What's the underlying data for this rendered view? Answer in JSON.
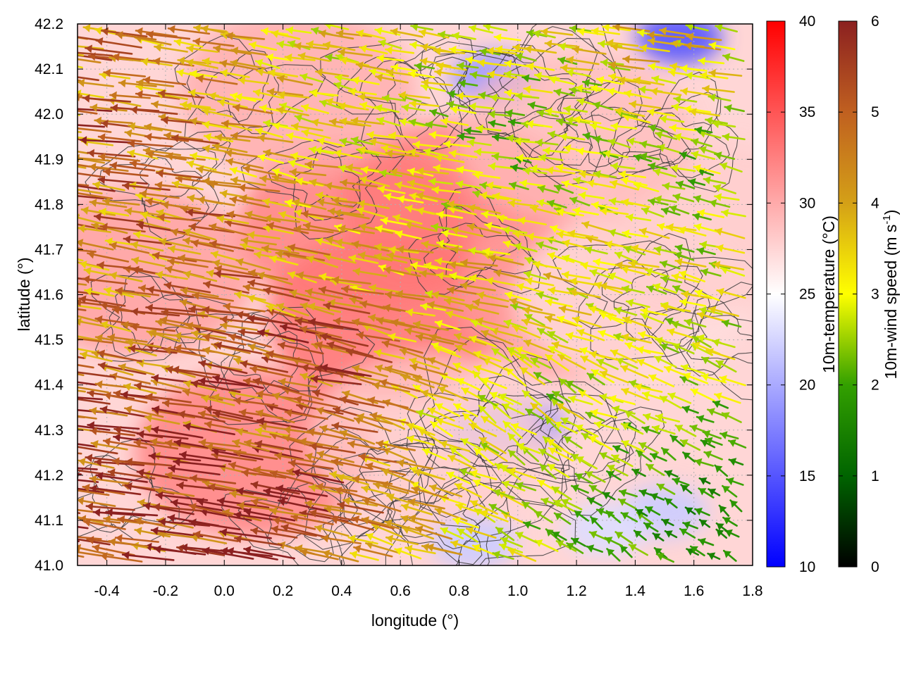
{
  "chart_data": {
    "type": "heatmap",
    "overlay": "vector-field-with-contours",
    "xlabel": "longitude (°)",
    "ylabel": "latitude (°)",
    "xlim": [
      -0.5,
      1.8
    ],
    "ylim": [
      41.0,
      42.2
    ],
    "xticks": [
      "-0.4",
      "-0.2",
      "0.0",
      "0.2",
      "0.4",
      "0.6",
      "0.8",
      "1.0",
      "1.2",
      "1.4",
      "1.6",
      "1.8"
    ],
    "xtick_values": [
      -0.4,
      -0.2,
      0.0,
      0.2,
      0.4,
      0.6,
      0.8,
      1.0,
      1.2,
      1.4,
      1.6,
      1.8
    ],
    "yticks": [
      "41.0",
      "41.1",
      "41.2",
      "41.3",
      "41.4",
      "41.5",
      "41.6",
      "41.7",
      "41.8",
      "41.9",
      "42.0",
      "42.1",
      "42.2"
    ],
    "ytick_values": [
      41.0,
      41.1,
      41.2,
      41.3,
      41.4,
      41.5,
      41.6,
      41.7,
      41.8,
      41.9,
      42.0,
      42.1,
      42.2
    ],
    "grid": true,
    "temperature_colorbar": {
      "label": "10m-temperature (°C)",
      "range": [
        10,
        40
      ],
      "ticks": [
        "10",
        "15",
        "20",
        "25",
        "30",
        "35",
        "40"
      ],
      "tick_values": [
        10,
        15,
        20,
        25,
        30,
        35,
        40
      ],
      "colors": [
        "#0000ff",
        "#ffffff",
        "#ff0000"
      ]
    },
    "wind_colorbar": {
      "label_prefix": "10m-wind speed (m s",
      "label_exp": "-1",
      "label_suffix": ")",
      "range": [
        0,
        6
      ],
      "ticks": [
        "0",
        "1",
        "2",
        "3",
        "4",
        "5",
        "6"
      ],
      "tick_values": [
        0,
        1,
        2,
        3,
        4,
        5,
        6
      ],
      "colors": [
        "#000000",
        "#006400",
        "#33a000",
        "#ffff00",
        "#d4a017",
        "#c06020",
        "#8b2020"
      ]
    },
    "temperature_regions": [
      {
        "lon": 0.55,
        "lat": 41.55,
        "temp": 34
      },
      {
        "lon": 0.1,
        "lat": 41.25,
        "temp": 33
      },
      {
        "lon": 0.45,
        "lat": 41.75,
        "temp": 33
      },
      {
        "lon": -0.3,
        "lat": 41.65,
        "temp": 31
      },
      {
        "lon": 0.8,
        "lat": 41.8,
        "temp": 33
      },
      {
        "lon": 1.2,
        "lat": 41.6,
        "temp": 31
      },
      {
        "lon": 0.25,
        "lat": 42.05,
        "temp": 30
      },
      {
        "lon": 1.55,
        "lat": 42.17,
        "temp": 15
      },
      {
        "lon": 0.92,
        "lat": 42.08,
        "temp": 19
      },
      {
        "lon": 1.01,
        "lat": 41.31,
        "temp": 19
      },
      {
        "lon": 0.9,
        "lat": 41.3,
        "temp": 21
      },
      {
        "lon": 1.5,
        "lat": 41.12,
        "temp": 22
      },
      {
        "lon": 1.3,
        "lat": 41.08,
        "temp": 23
      },
      {
        "lon": 0.85,
        "lat": 41.05,
        "temp": 22
      },
      {
        "lon": 1.4,
        "lat": 41.6,
        "temp": 27
      },
      {
        "lon": 1.65,
        "lat": 41.75,
        "temp": 28
      },
      {
        "lon": 1.2,
        "lat": 41.95,
        "temp": 29
      },
      {
        "lon": 0.7,
        "lat": 41.28,
        "temp": 28
      }
    ],
    "wind_field": {
      "description": "prevailing westward winds; strongest (5-6 m/s) over western and central areas, weaker (1-3 m/s) near coast and eastern hills",
      "regions": [
        {
          "lon": -0.3,
          "lat": 41.2,
          "u": -5.5,
          "v": 0.6
        },
        {
          "lon": 0.2,
          "lat": 41.15,
          "u": -5.8,
          "v": 1.0
        },
        {
          "lon": 0.4,
          "lat": 41.45,
          "u": -5.0,
          "v": 1.2
        },
        {
          "lon": 0.0,
          "lat": 41.7,
          "u": -4.5,
          "v": 0.8
        },
        {
          "lon": -0.3,
          "lat": 41.95,
          "u": -4.8,
          "v": 0.5
        },
        {
          "lon": 0.4,
          "lat": 42.05,
          "u": -3.0,
          "v": 0.6
        },
        {
          "lon": 0.8,
          "lat": 41.6,
          "u": -3.5,
          "v": 0.5
        },
        {
          "lon": 1.0,
          "lat": 41.95,
          "u": -2.0,
          "v": 0.2
        },
        {
          "lon": 1.4,
          "lat": 41.7,
          "u": -3.0,
          "v": 0.8
        },
        {
          "lon": 1.55,
          "lat": 41.9,
          "u": -2.0,
          "v": 0.6
        },
        {
          "lon": 1.0,
          "lat": 41.35,
          "u": -2.0,
          "v": 2.0
        },
        {
          "lon": 1.4,
          "lat": 41.1,
          "u": -1.5,
          "v": 1.0
        },
        {
          "lon": 1.65,
          "lat": 41.1,
          "u": -1.2,
          "v": 0.9
        },
        {
          "lon": 1.55,
          "lat": 42.12,
          "u": -3.5,
          "v": 0.4
        }
      ]
    }
  }
}
